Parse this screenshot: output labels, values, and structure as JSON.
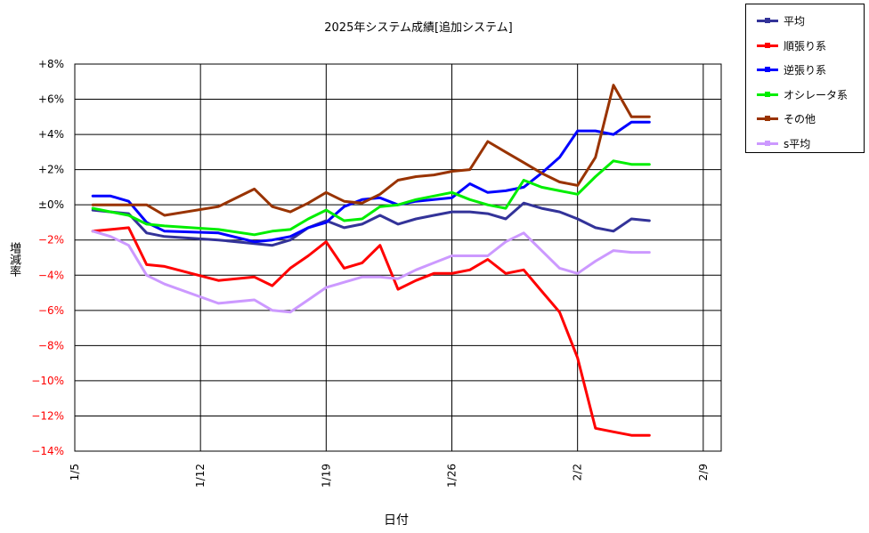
{
  "chart_data": {
    "type": "line",
    "title": "2025年システム成績[追加システム]",
    "xlabel": "日付",
    "ylabel": "増減率",
    "y_ticks": [
      "+8%",
      "+6%",
      "+4%",
      "+2%",
      "±0%",
      "−2%",
      "−4%",
      "−6%",
      "−8%",
      "−10%",
      "−12%",
      "−14%"
    ],
    "ylim": [
      -14,
      8
    ],
    "x_ticks": [
      "1/5",
      "1/12",
      "1/19",
      "1/26",
      "2/2",
      "2/9"
    ],
    "x_tick_day": [
      5,
      12,
      19,
      26,
      33,
      40
    ],
    "xlim": [
      5,
      41
    ],
    "grid": true,
    "legend_position": "top-right",
    "series": [
      {
        "name": "平均",
        "color": "#333399",
        "x": [
          6,
          7,
          8,
          9,
          10,
          13,
          15,
          16,
          17,
          18,
          19,
          20,
          21,
          22,
          23,
          24,
          25,
          26,
          27,
          28,
          29,
          30,
          31,
          32,
          33,
          34,
          35,
          36,
          37
        ],
        "values": [
          -0.3,
          -0.4,
          -0.5,
          -1.6,
          -1.8,
          -2.0,
          -2.2,
          -2.3,
          -2.0,
          -1.3,
          -0.9,
          -1.3,
          -1.1,
          -0.6,
          -1.1,
          -0.8,
          -0.6,
          -0.4,
          -0.4,
          -0.5,
          -0.8,
          0.1,
          -0.2,
          -0.4,
          -0.8,
          -1.3,
          -1.5,
          -0.8,
          -0.9
        ]
      },
      {
        "name": "順張り系",
        "color": "#ff0000",
        "x": [
          6,
          7,
          8,
          9,
          10,
          13,
          15,
          16,
          17,
          18,
          19,
          20,
          21,
          22,
          23,
          24,
          25,
          26,
          27,
          28,
          29,
          30,
          31,
          32,
          33,
          34,
          35,
          36,
          37
        ],
        "values": [
          -1.5,
          -1.4,
          -1.3,
          -3.4,
          -3.5,
          -4.3,
          -4.1,
          -4.6,
          -3.6,
          -2.9,
          -2.1,
          -3.6,
          -3.3,
          -2.3,
          -4.8,
          -4.3,
          -3.9,
          -3.9,
          -3.7,
          -3.1,
          -3.9,
          -3.7,
          -4.9,
          -6.1,
          -8.7,
          -12.7,
          -12.9,
          -13.1,
          -13.1
        ]
      },
      {
        "name": "逆張り系",
        "color": "#0000ff",
        "x": [
          6,
          7,
          8,
          9,
          10,
          13,
          15,
          16,
          17,
          18,
          19,
          20,
          21,
          22,
          23,
          24,
          25,
          26,
          27,
          28,
          29,
          30,
          31,
          32,
          33,
          34,
          35,
          36,
          37
        ],
        "values": [
          0.5,
          0.5,
          0.2,
          -1.0,
          -1.5,
          -1.6,
          -2.1,
          -2.0,
          -1.8,
          -1.3,
          -1.0,
          -0.1,
          0.3,
          0.4,
          0.0,
          0.2,
          0.3,
          0.4,
          1.2,
          0.7,
          0.8,
          1.0,
          1.8,
          2.7,
          4.2,
          4.2,
          4.0,
          4.7,
          4.7
        ]
      },
      {
        "name": "オシレータ系",
        "color": "#00ee00",
        "x": [
          6,
          7,
          8,
          9,
          10,
          13,
          15,
          16,
          17,
          18,
          19,
          20,
          21,
          22,
          23,
          24,
          25,
          26,
          27,
          28,
          29,
          30,
          31,
          32,
          33,
          34,
          35,
          36,
          37
        ],
        "values": [
          -0.2,
          -0.4,
          -0.6,
          -1.1,
          -1.2,
          -1.4,
          -1.7,
          -1.5,
          -1.4,
          -0.8,
          -0.3,
          -0.9,
          -0.8,
          -0.1,
          0.0,
          0.3,
          0.5,
          0.7,
          0.3,
          0.0,
          -0.2,
          1.4,
          1.0,
          0.8,
          0.6,
          1.6,
          2.5,
          2.3,
          2.3
        ]
      },
      {
        "name": "その他",
        "color": "#993300",
        "x": [
          6,
          7,
          8,
          9,
          10,
          13,
          15,
          16,
          17,
          18,
          19,
          20,
          21,
          22,
          23,
          24,
          25,
          26,
          27,
          28,
          29,
          30,
          31,
          32,
          33,
          34,
          35,
          36,
          37
        ],
        "values": [
          0.0,
          0.0,
          0.0,
          0.0,
          -0.6,
          -0.1,
          0.9,
          -0.1,
          -0.4,
          0.1,
          0.7,
          0.2,
          0.1,
          0.6,
          1.4,
          1.6,
          1.7,
          1.9,
          2.0,
          3.6,
          3.0,
          2.4,
          1.8,
          1.3,
          1.1,
          2.7,
          6.8,
          5.0,
          5.0
        ]
      },
      {
        "name": "s平均",
        "color": "#cc99ff",
        "x": [
          6,
          7,
          8,
          9,
          10,
          13,
          15,
          16,
          17,
          18,
          19,
          20,
          21,
          22,
          23,
          24,
          25,
          26,
          27,
          28,
          29,
          30,
          31,
          32,
          33,
          34,
          35,
          36,
          37
        ],
        "values": [
          -1.5,
          -1.8,
          -2.3,
          -4.0,
          -4.5,
          -5.6,
          -5.4,
          -6.0,
          -6.1,
          -5.4,
          -4.7,
          -4.4,
          -4.1,
          -4.1,
          -4.2,
          -3.7,
          -3.3,
          -2.9,
          -2.9,
          -2.9,
          -2.1,
          -1.6,
          -2.6,
          -3.6,
          -3.9,
          -3.2,
          -2.6,
          -2.7,
          -2.7
        ]
      }
    ]
  }
}
